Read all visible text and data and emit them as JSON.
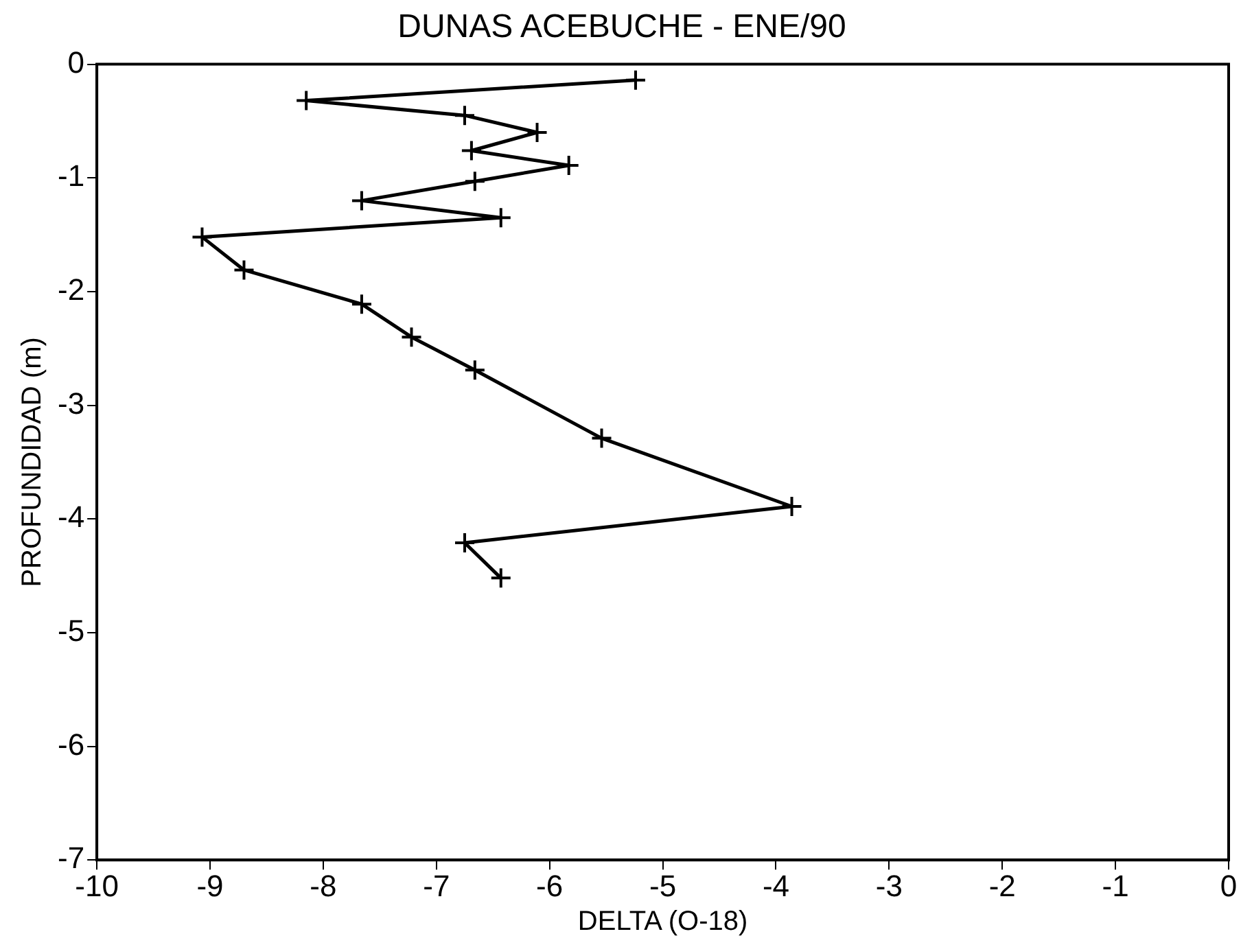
{
  "chart_data": {
    "type": "line",
    "title": "DUNAS ACEBUCHE - ENE/90",
    "xlabel": "DELTA (O-18)",
    "ylabel": "PROFUNDIDAD (m)",
    "x": [
      -5.24,
      -8.15,
      -6.75,
      -6.11,
      -6.69,
      -5.83,
      -6.66,
      -7.66,
      -6.43,
      -9.07,
      -8.7,
      -7.66,
      -7.22,
      -6.66,
      -5.54,
      -3.86,
      -6.75,
      -6.43
    ],
    "values": [
      -0.14,
      -0.32,
      -0.45,
      -0.6,
      -0.76,
      -0.89,
      -1.03,
      -1.2,
      -1.35,
      -1.52,
      -1.81,
      -2.11,
      -2.4,
      -2.69,
      -3.29,
      -3.89,
      -4.21,
      -4.52
    ],
    "color": "#000000",
    "marker": "cross",
    "line_style": "solid",
    "xlim": [
      -10,
      0
    ],
    "xticks": [
      -10,
      -9,
      -8,
      -7,
      -6,
      -5,
      -4,
      -3,
      -2,
      -1,
      0
    ],
    "ylim": [
      -7,
      0
    ],
    "yticks": [
      -7,
      -6,
      -5,
      -4,
      -3,
      -2,
      -1,
      0
    ],
    "grid": false,
    "legend": false
  }
}
